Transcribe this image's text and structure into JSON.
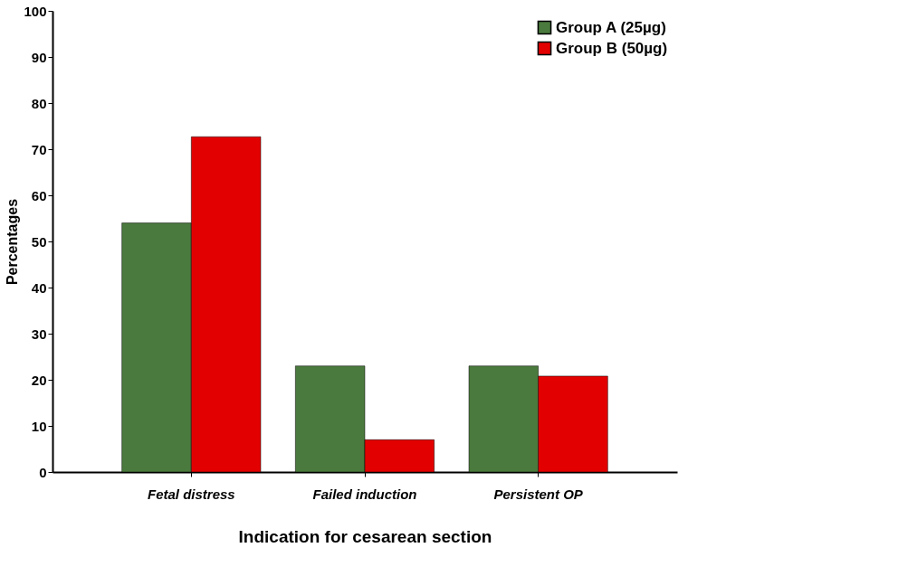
{
  "chart_data": {
    "type": "bar",
    "xlabel": "Indication for cesarean section",
    "ylabel": "Percentages",
    "categories": [
      "Fetal distress",
      "Failed induction",
      "Persistent OP"
    ],
    "series": [
      {
        "name": "Group A (25µg)",
        "color": "#4a7a3d",
        "values": [
          54,
          23,
          23
        ]
      },
      {
        "name": "Group B (50µg)",
        "color": "#e30000",
        "values": [
          72.7,
          7,
          20.8
        ]
      }
    ],
    "ylim": [
      0,
      100
    ],
    "yticks": [
      0,
      10,
      20,
      30,
      40,
      50,
      60,
      70,
      80,
      90,
      100
    ],
    "grid": false,
    "legend": "top right"
  }
}
